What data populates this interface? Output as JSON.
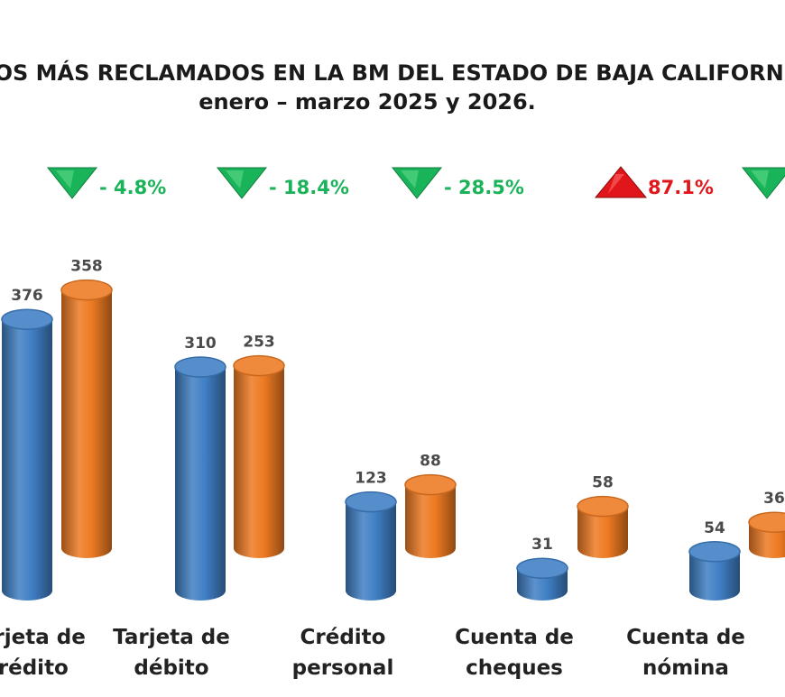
{
  "chart_data": {
    "type": "bar",
    "title_line1": "PRODUCTOS MÁS RECLAMADOS EN LA BM DEL ESTADO DE BAJA CALIFORNIA",
    "title_line2": "enero – marzo 2025 y 2026.",
    "categories": [
      [
        "Tarjeta de",
        "crédito"
      ],
      [
        "Tarjeta de",
        "débito"
      ],
      [
        "Crédito",
        "personal"
      ],
      [
        "Cuenta de",
        "cheques"
      ],
      [
        "Cuenta de",
        "nómina"
      ]
    ],
    "series": [
      {
        "values": [
          376,
          310,
          123,
          31,
          54
        ],
        "color": "#3f7fc4"
      },
      {
        "values": [
          358,
          253,
          88,
          58,
          36
        ],
        "color": "#ed7a22"
      }
    ],
    "changes": [
      {
        "label": "- 4.8%",
        "direction": "down"
      },
      {
        "label": "- 18.4%",
        "direction": "down"
      },
      {
        "label": "- 28.5%",
        "direction": "down"
      },
      {
        "label": "87.1%",
        "direction": "up"
      },
      {
        "label": "",
        "direction": "down"
      }
    ],
    "colors": {
      "down": "#19b35a",
      "up": "#e0161b",
      "down_text": "#1bb35a",
      "up_text": "#e0161b"
    }
  }
}
